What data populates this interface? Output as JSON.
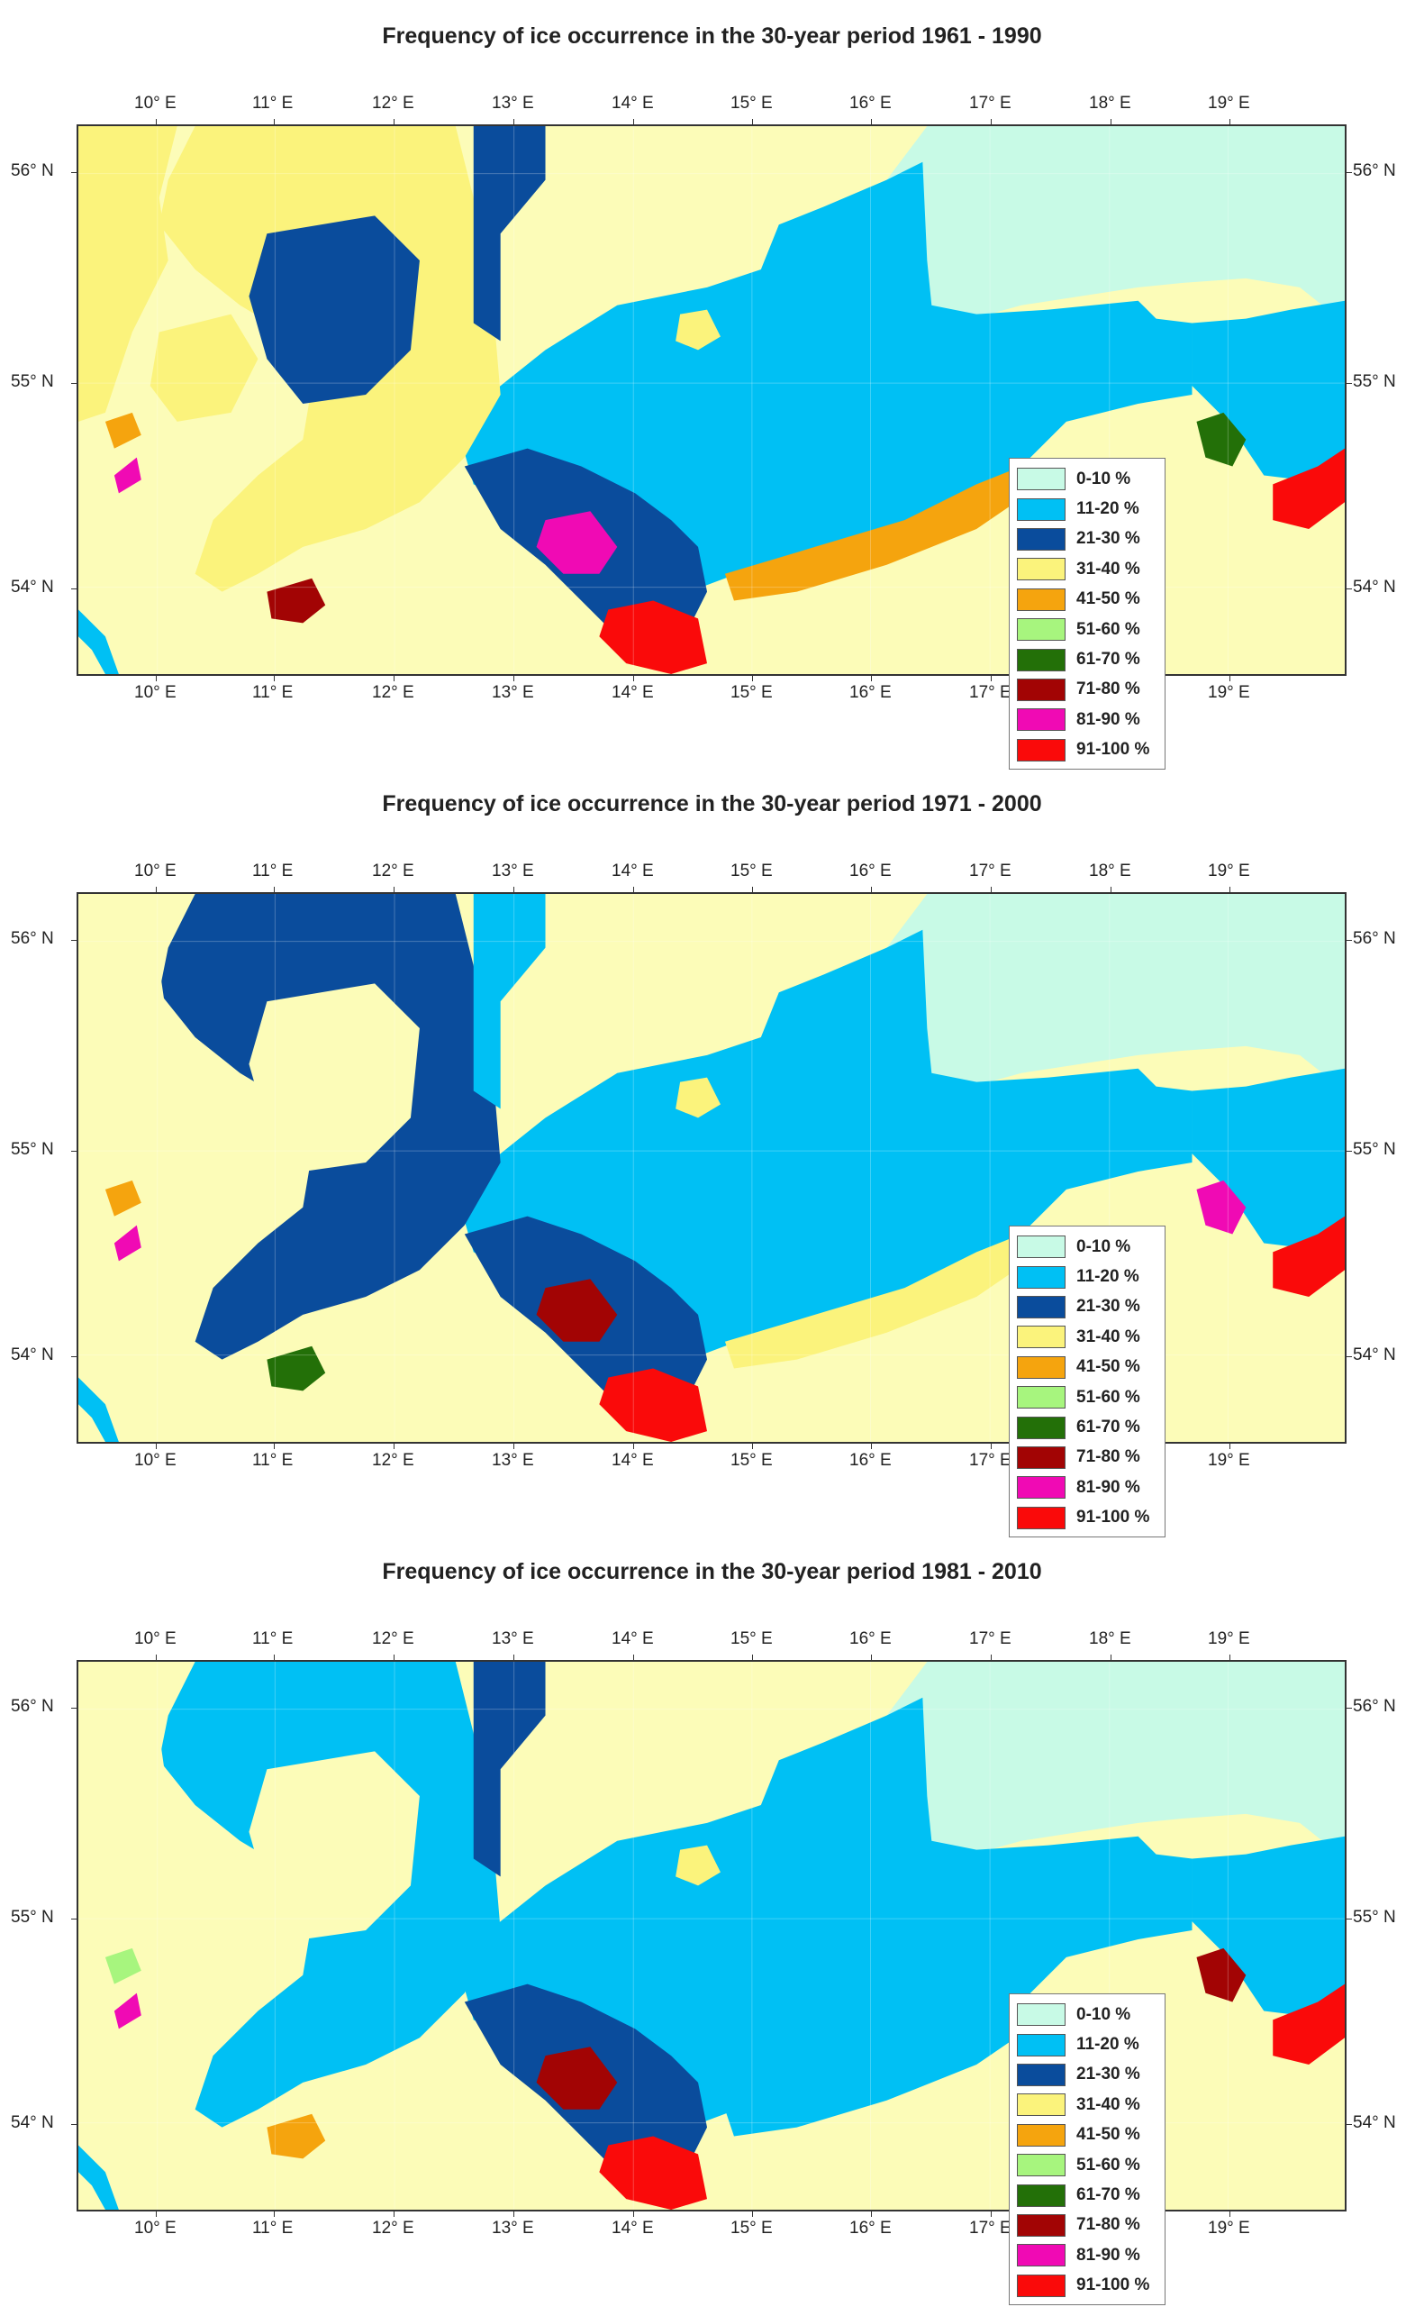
{
  "panels": [
    {
      "title": "Frequency of ice occurrence in the 30-year period 1961 - 1990",
      "period": "1961-1990"
    },
    {
      "title": "Frequency of ice occurrence in the 30-year period 1971 - 2000",
      "period": "1971-2000"
    },
    {
      "title": "Frequency of ice occurrence in the 30-year period 1981 - 2010",
      "period": "1981-2010"
    }
  ],
  "axes": {
    "longitude_ticks": [
      "10° E",
      "11° E",
      "12° E",
      "13° E",
      "14° E",
      "15° E",
      "16° E",
      "17° E",
      "18° E",
      "19° E"
    ],
    "latitude_ticks": [
      "56° N",
      "55° N",
      "54° N"
    ]
  },
  "legend": {
    "items": [
      {
        "label": "0-10 %",
        "color": "#c8fae6"
      },
      {
        "label": "11-20 %",
        "color": "#00c0f4"
      },
      {
        "label": "21-30 %",
        "color": "#0a4c9c"
      },
      {
        "label": "31-40 %",
        "color": "#fbf37c"
      },
      {
        "label": "41-50 %",
        "color": "#f5a40e"
      },
      {
        "label": "51-60 %",
        "color": "#a7f57e"
      },
      {
        "label": "61-70 %",
        "color": "#237008"
      },
      {
        "label": "71-80 %",
        "color": "#a20404"
      },
      {
        "label": "81-90 %",
        "color": "#f00ab4"
      },
      {
        "label": "91-100 %",
        "color": "#fa0a0a"
      }
    ]
  },
  "colors": {
    "land": "#fcfcb8",
    "c0_10": "#c8fae6",
    "c11_20": "#00c0f4",
    "c21_30": "#0a4c9c",
    "c31_40": "#fbf37c",
    "c41_50": "#f5a40e",
    "c51_60": "#a7f57e",
    "c61_70": "#237008",
    "c71_80": "#a20404",
    "c81_90": "#f00ab4",
    "c91_100": "#fa0a0a"
  }
}
